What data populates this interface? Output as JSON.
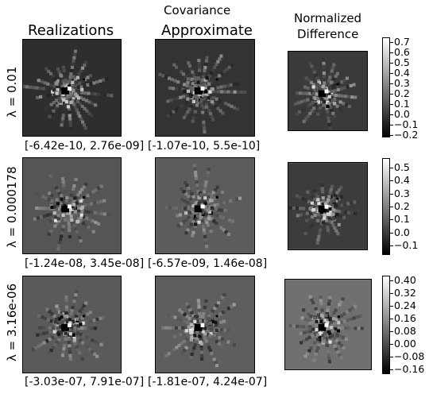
{
  "header": {
    "covariance": "Covariance",
    "col_realizations": "Realizations",
    "col_approximate": "Approximate",
    "col_normalized_line1": "Normalized",
    "col_normalized_line2": "Difference"
  },
  "rows": [
    {
      "lambda_label": "λ = 0.01",
      "realizations_range": "[-6.42e-10, 2.76e-09]",
      "approximate_range": "[-1.07e-10, 5.5e-10]",
      "colorbar_ticks": [
        "0.7",
        "0.6",
        "0.5",
        "0.4",
        "0.3",
        "0.2",
        "0.1",
        "0.0",
        "−0.1",
        "−0.2"
      ],
      "colorbar_limits": [
        -0.22,
        0.75
      ]
    },
    {
      "lambda_label": "λ = 0.000178",
      "realizations_range": "[-1.24e-08, 3.45e-08]",
      "approximate_range": "[-6.57e-09, 1.46e-08]",
      "colorbar_ticks": [
        "0.5",
        "0.4",
        "0.3",
        "0.2",
        "0.1",
        "0.0",
        "−0.1"
      ],
      "colorbar_limits": [
        -0.17,
        0.57
      ]
    },
    {
      "lambda_label": "λ = 3.16e-06",
      "realizations_range": "[-3.03e-07, 7.91e-07]",
      "approximate_range": "[-1.81e-07, 4.24e-07]",
      "colorbar_ticks": [
        "0.40",
        "0.32",
        "0.24",
        "0.16",
        "0.08",
        "0.00",
        "−0.08",
        "−0.16"
      ],
      "colorbar_limits": [
        -0.19,
        0.43
      ]
    }
  ],
  "chart_data": {
    "type": "heatmap",
    "columns": [
      "Realizations",
      "Approximate",
      "Normalized Difference"
    ],
    "rows": [
      "λ = 0.01",
      "λ = 0.000178",
      "λ = 3.16e-06"
    ],
    "colormap": "gray",
    "colorbars": [
      {
        "row": "λ = 0.01",
        "ticks": [
          0.7,
          0.6,
          0.5,
          0.4,
          0.3,
          0.2,
          0.1,
          0.0,
          -0.1,
          -0.2
        ]
      },
      {
        "row": "λ = 0.000178",
        "ticks": [
          0.5,
          0.4,
          0.3,
          0.2,
          0.1,
          0.0,
          -0.1
        ]
      },
      {
        "row": "λ = 3.16e-06",
        "ticks": [
          0.4,
          0.32,
          0.24,
          0.16,
          0.08,
          0.0,
          -0.08,
          -0.16
        ]
      }
    ]
  }
}
